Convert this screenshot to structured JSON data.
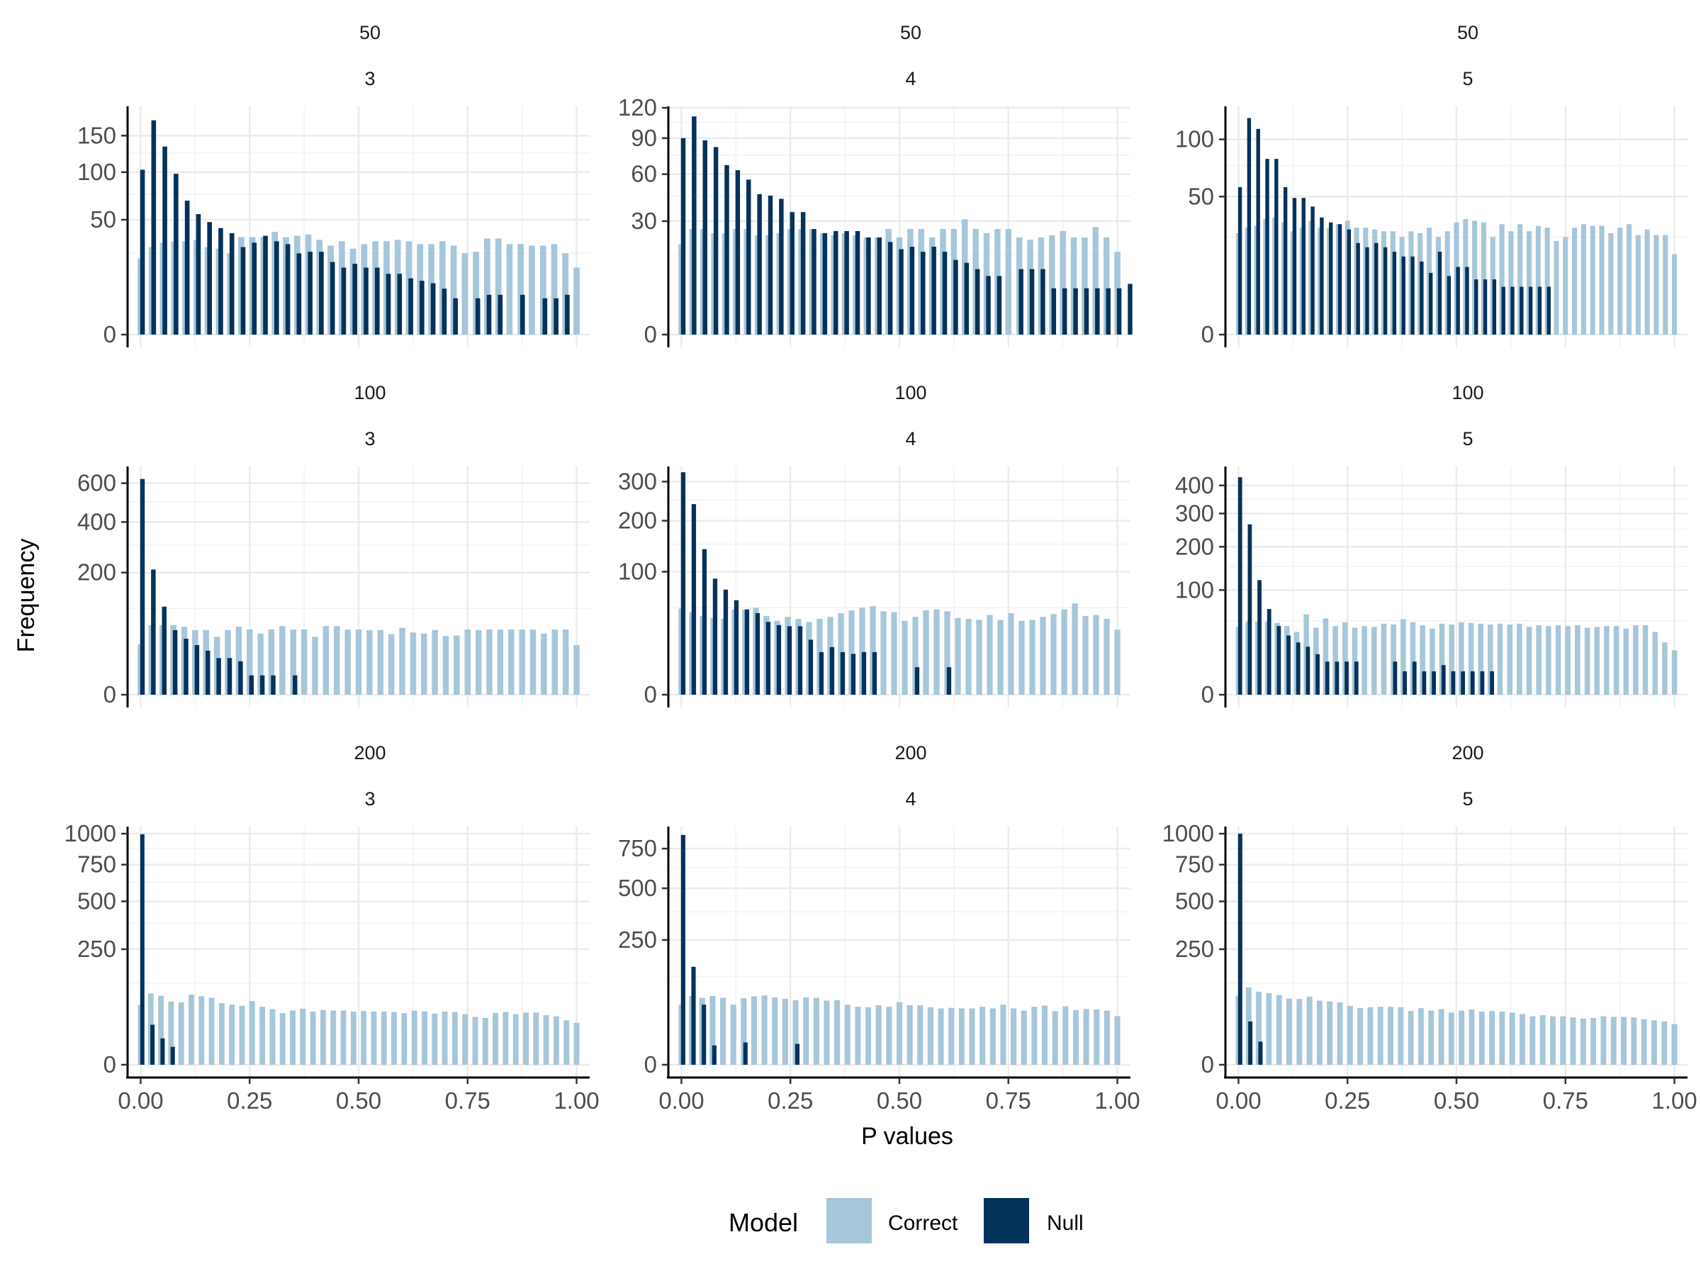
{
  "chart_data": {
    "type": "bar",
    "xlabel": "P values",
    "ylabel": "Frequency",
    "legend": {
      "title": "Model",
      "position": "bottom",
      "entries": [
        {
          "name": "Correct",
          "color": "#a6c6da"
        },
        {
          "name": "Null",
          "color": "#04325a"
        }
      ]
    },
    "colors": {
      "Correct": "#a6c6da",
      "Null": "#04325a"
    },
    "x_ticks": [
      0,
      0.25,
      0.5,
      0.75,
      1
    ],
    "x_tick_labels": [
      "0.00",
      "0.25",
      "0.50",
      "0.75",
      "1.00"
    ],
    "xlim": [
      -0.03,
      1.03
    ],
    "y_scale": "sqrt",
    "grid": true,
    "panels": [
      {
        "strip_top": "50",
        "strip_bottom": "3",
        "ylim_max": 195,
        "y_ticks": [
          0,
          50,
          100,
          150
        ],
        "y_tick_labels": [
          "0",
          "50",
          "100",
          "150"
        ],
        "correct": [
          22,
          29,
          32,
          33,
          33,
          34,
          29,
          28,
          25,
          36,
          36,
          36,
          40,
          36,
          37,
          38,
          34,
          30,
          33,
          28,
          31,
          33,
          33,
          34,
          33,
          31,
          31,
          33,
          30,
          25,
          26,
          35,
          35,
          31,
          31,
          30,
          30,
          31,
          25,
          17
        ],
        "null": [
          103,
          174,
          134,
          98,
          68,
          55,
          48,
          43,
          39,
          29,
          32,
          37,
          33,
          31,
          25,
          26,
          26,
          20,
          17,
          19,
          17,
          17,
          14,
          14,
          12,
          11,
          10,
          8,
          5,
          0,
          5,
          6,
          6,
          0,
          6,
          0,
          5,
          5,
          6,
          0
        ]
      },
      {
        "strip_top": "50",
        "strip_bottom": "4",
        "ylim_max": 120,
        "y_ticks": [
          0,
          30,
          60,
          90,
          120
        ],
        "y_tick_labels": [
          "0",
          "30",
          "60",
          "90",
          "120"
        ],
        "correct": [
          19,
          26,
          26,
          24,
          24,
          26,
          26,
          23,
          23,
          24,
          26,
          26,
          26,
          24,
          23,
          24,
          23,
          22,
          22,
          26,
          22,
          26,
          26,
          22,
          26,
          26,
          31,
          26,
          24,
          26,
          26,
          22,
          21,
          22,
          23,
          25,
          22,
          22,
          27,
          22,
          16
        ],
        "null": [
          90,
          111,
          88,
          82,
          67,
          63,
          56,
          46,
          45,
          43,
          35,
          35,
          26,
          24,
          25,
          25,
          25,
          22,
          22,
          20,
          17,
          18,
          16,
          18,
          16,
          13,
          12,
          10,
          8,
          8,
          0,
          10,
          10,
          10,
          5,
          5,
          5,
          5,
          5,
          5,
          5,
          6
        ]
      },
      {
        "strip_top": "50",
        "strip_bottom": "5",
        "ylim_max": 135,
        "y_ticks": [
          0,
          50,
          100
        ],
        "y_tick_labels": [
          "0",
          "50",
          "100"
        ],
        "correct": [
          27,
          30,
          31,
          35,
          36,
          33,
          28,
          30,
          34,
          30,
          30,
          32,
          34,
          30,
          30,
          29,
          28,
          28,
          25,
          28,
          27,
          30,
          25,
          28,
          33,
          35,
          34,
          33,
          25,
          32,
          28,
          32,
          28,
          31,
          30,
          23,
          25,
          30,
          32,
          31,
          31,
          27,
          30,
          32,
          26,
          29,
          26,
          26,
          17
        ],
        "null": [
          57,
          123,
          111,
          81,
          81,
          57,
          49,
          49,
          43,
          36,
          33,
          32,
          29,
          22,
          20,
          22,
          20,
          18,
          16,
          16,
          14,
          10,
          18,
          9,
          12,
          12,
          8,
          8,
          8,
          6,
          6,
          6,
          6,
          6,
          6,
          0,
          0,
          0,
          0
        ]
      },
      {
        "strip_top": "100",
        "strip_bottom": "3",
        "ylim_max": 690,
        "y_ticks": [
          0,
          200,
          400,
          600
        ],
        "y_tick_labels": [
          "0",
          "200",
          "400",
          "600"
        ],
        "correct": [
          34,
          65,
          65,
          65,
          62,
          56,
          56,
          45,
          56,
          62,
          57,
          50,
          57,
          63,
          57,
          57,
          45,
          63,
          63,
          57,
          57,
          56,
          56,
          49,
          60,
          52,
          50,
          56,
          46,
          47,
          57,
          56,
          57,
          57,
          57,
          57,
          57,
          50,
          57,
          57,
          33
        ],
        "null": [
          624,
          210,
          104,
          56,
          42,
          33,
          26,
          18,
          18,
          15,
          5,
          5,
          5,
          0,
          5,
          0,
          0,
          0,
          0,
          0,
          0,
          0,
          0,
          0,
          0,
          0,
          0,
          0,
          0,
          0,
          0,
          0,
          0,
          0,
          0,
          0,
          0,
          0,
          0,
          0,
          0
        ]
      },
      {
        "strip_top": "100",
        "strip_bottom": "4",
        "ylim_max": 340,
        "y_ticks": [
          0,
          100,
          200,
          300
        ],
        "y_tick_labels": [
          "0",
          "100",
          "200",
          "300"
        ],
        "correct": [
          49,
          45,
          41,
          39,
          38,
          48,
          48,
          50,
          41,
          36,
          40,
          38,
          35,
          38,
          40,
          44,
          47,
          50,
          52,
          46,
          45,
          36,
          40,
          47,
          48,
          46,
          39,
          38,
          37,
          42,
          37,
          44,
          36,
          37,
          40,
          43,
          48,
          55,
          41,
          42,
          38,
          28
        ],
        "null": [
          327,
          240,
          140,
          89,
          73,
          59,
          48,
          44,
          35,
          32,
          31,
          31,
          20,
          12,
          15,
          12,
          11,
          12,
          12,
          0,
          0,
          0,
          5,
          0,
          0,
          5,
          0,
          0,
          0,
          0,
          0,
          0,
          0,
          0,
          0,
          0,
          0,
          0,
          0,
          0,
          0,
          0
        ]
      },
      {
        "strip_top": "100",
        "strip_bottom": "5",
        "ylim_max": 470,
        "y_ticks": [
          0,
          100,
          200,
          300,
          400
        ],
        "y_tick_labels": [
          "0",
          "100",
          "200",
          "300",
          "400"
        ],
        "correct": [
          42,
          49,
          49,
          49,
          47,
          43,
          36,
          59,
          41,
          53,
          43,
          48,
          41,
          43,
          42,
          46,
          45,
          52,
          48,
          44,
          40,
          46,
          45,
          48,
          47,
          46,
          45,
          46,
          45,
          46,
          42,
          44,
          43,
          44,
          43,
          44,
          41,
          42,
          43,
          43,
          40,
          44,
          44,
          36,
          25,
          18
        ],
        "null": [
          432,
          265,
          120,
          67,
          43,
          32,
          25,
          21,
          15,
          10,
          10,
          10,
          10,
          0,
          0,
          0,
          10,
          5,
          10,
          5,
          5,
          8,
          5,
          5,
          5,
          5,
          5,
          0,
          0,
          0,
          0,
          0,
          0,
          0,
          0,
          0,
          0,
          0,
          0,
          0,
          0
        ]
      },
      {
        "strip_top": "200",
        "strip_bottom": "3",
        "ylim_max": 1050,
        "y_ticks": [
          0,
          250,
          500,
          750,
          1000
        ],
        "y_tick_labels": [
          "0",
          "250",
          "500",
          "750",
          "1000"
        ],
        "correct": [
          67,
          95,
          89,
          75,
          73,
          92,
          88,
          84,
          71,
          68,
          65,
          76,
          63,
          58,
          50,
          55,
          59,
          53,
          56,
          55,
          55,
          53,
          54,
          53,
          53,
          52,
          50,
          55,
          53,
          49,
          53,
          52,
          48,
          43,
          41,
          50,
          52,
          48,
          51,
          51,
          46,
          44,
          37,
          33
        ],
        "null": [
          995,
          30,
          13,
          6,
          0,
          0,
          0,
          0,
          0,
          0,
          0,
          0,
          0,
          0,
          0,
          0,
          0,
          0,
          0,
          0,
          0,
          0,
          0,
          0,
          0,
          0,
          0,
          0,
          0,
          0,
          0,
          0,
          0,
          0,
          0,
          0,
          0,
          0,
          0,
          0,
          0,
          0
        ]
      },
      {
        "strip_top": "200",
        "strip_bottom": "4",
        "ylim_max": 900,
        "y_ticks": [
          0,
          250,
          500,
          750
        ],
        "y_tick_labels": [
          "0",
          "250",
          "500",
          "750"
        ],
        "correct": [
          58,
          76,
          72,
          76,
          72,
          58,
          71,
          75,
          77,
          73,
          70,
          67,
          73,
          72,
          66,
          67,
          58,
          54,
          53,
          57,
          54,
          63,
          57,
          57,
          53,
          51,
          52,
          51,
          51,
          54,
          51,
          58,
          51,
          47,
          54,
          56,
          46,
          55,
          48,
          50,
          49,
          47,
          38
        ],
        "null": [
          848,
          154,
          58,
          6,
          0,
          0,
          8,
          0,
          0,
          0,
          0,
          7,
          0,
          0,
          0,
          0,
          0,
          0,
          0,
          0,
          0,
          0,
          0,
          0,
          0,
          0,
          0,
          0,
          0,
          0,
          0,
          0,
          0,
          0,
          0,
          0,
          0,
          0,
          0,
          0,
          0,
          0,
          0
        ]
      },
      {
        "strip_top": "200",
        "strip_bottom": "5",
        "ylim_max": 1050,
        "y_ticks": [
          0,
          250,
          500,
          750,
          1000
        ],
        "y_tick_labels": [
          "0",
          "250",
          "500",
          "750",
          "1000"
        ],
        "correct": [
          89,
          112,
          100,
          96,
          91,
          82,
          81,
          87,
          77,
          75,
          73,
          65,
          60,
          62,
          63,
          63,
          62,
          54,
          60,
          55,
          58,
          51,
          55,
          57,
          53,
          54,
          53,
          51,
          48,
          44,
          46,
          44,
          44,
          42,
          40,
          41,
          44,
          43,
          43,
          42,
          39,
          37,
          35,
          31
        ],
        "null": [
          1000,
          35,
          10,
          0,
          0,
          0,
          0,
          0,
          0,
          0,
          0,
          0,
          0,
          0,
          0,
          0,
          0,
          0,
          0,
          0,
          0,
          0,
          0,
          0,
          0,
          0,
          0,
          0,
          0,
          0,
          0,
          0,
          0,
          0,
          0,
          0,
          0,
          0,
          0,
          0,
          0,
          0
        ]
      }
    ]
  }
}
